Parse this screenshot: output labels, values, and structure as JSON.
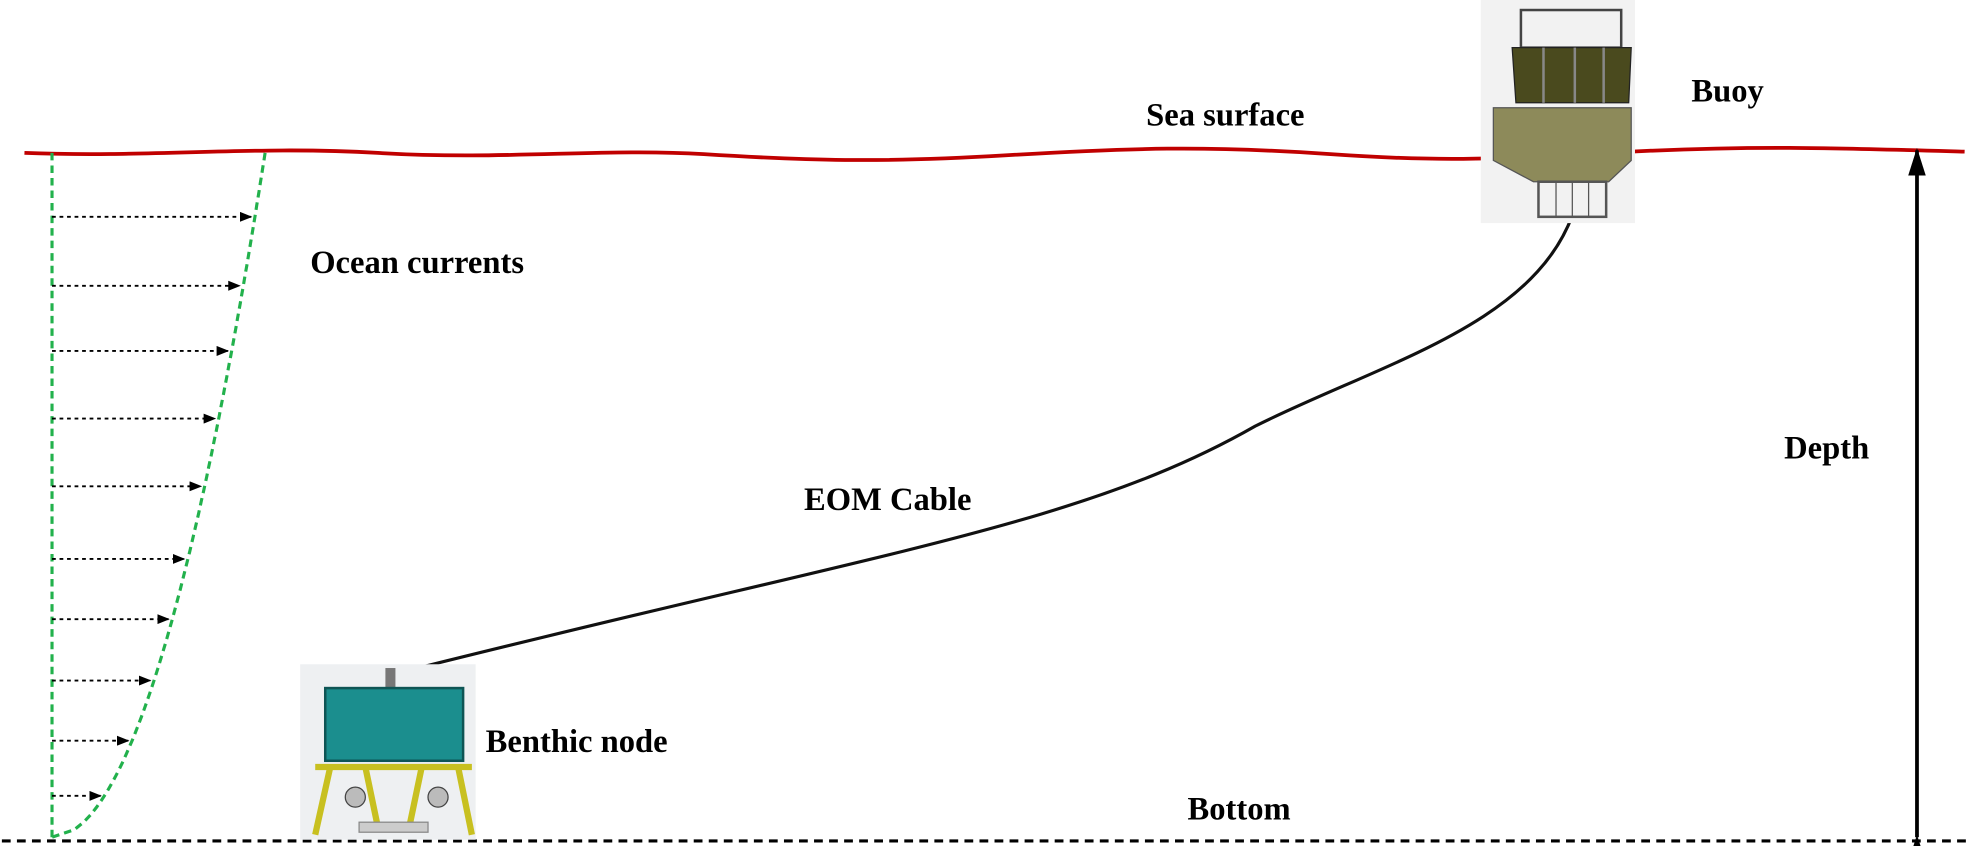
{
  "labels": {
    "sea_surface": "Sea surface",
    "buoy": "Buoy",
    "ocean_currents": "Ocean currents",
    "eom_cable": "EOM Cable",
    "depth": "Depth",
    "benthic_node": "Benthic node",
    "bottom": "Bottom"
  }
}
